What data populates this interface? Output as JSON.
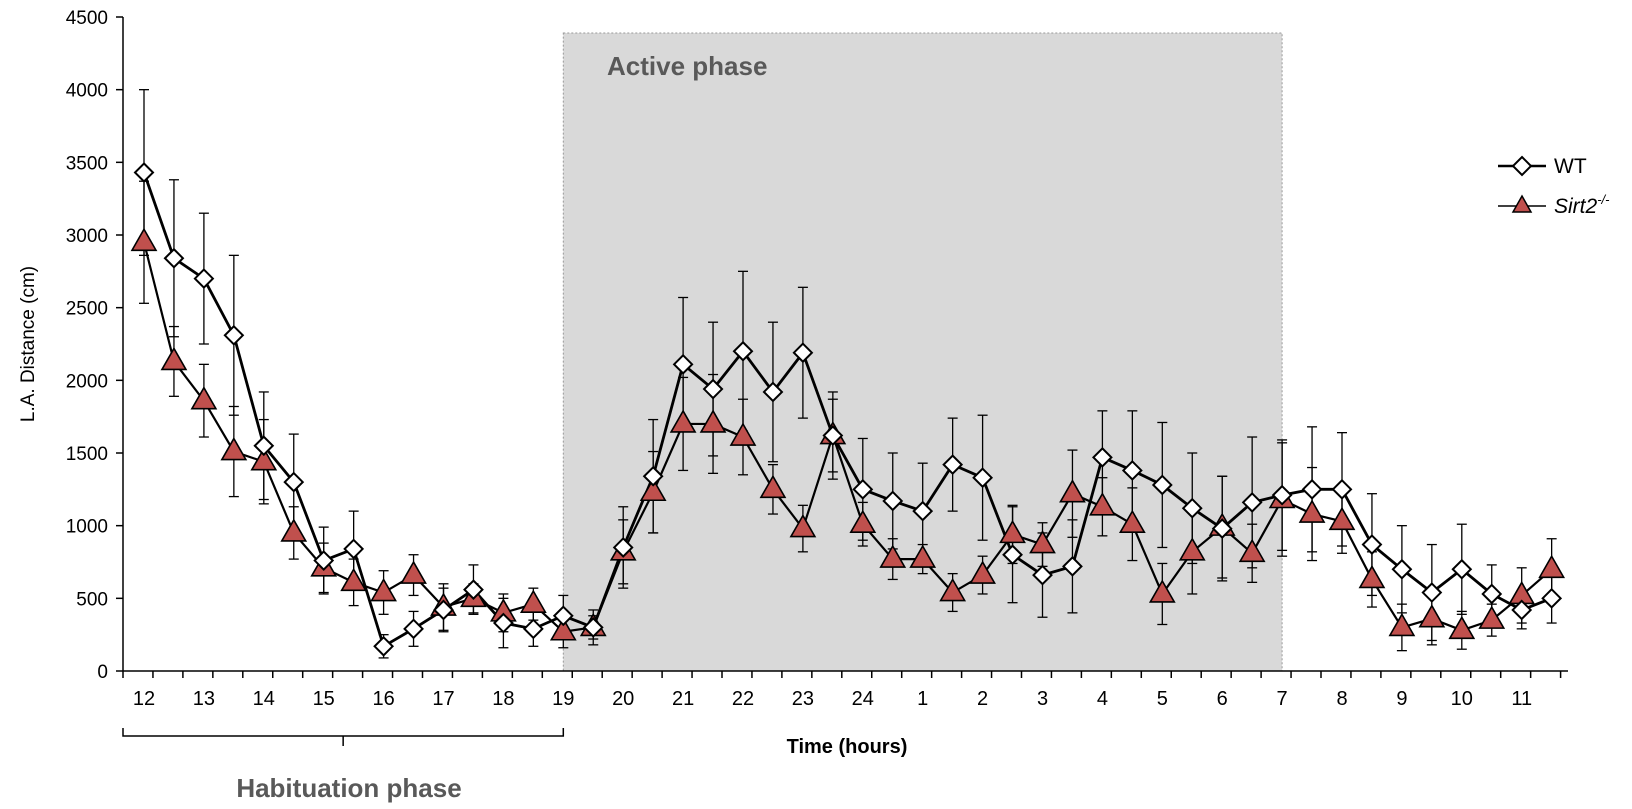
{
  "chart_data": {
    "type": "line",
    "title": "",
    "xlabel": "Time (hours)",
    "ylabel": "L.A. Distance (cm)",
    "ylim": [
      0,
      4500
    ],
    "yticks": [
      0,
      500,
      1000,
      1500,
      2000,
      2500,
      3000,
      3500,
      4000,
      4500
    ],
    "x_tick_labels": [
      "12",
      "13",
      "14",
      "15",
      "16",
      "17",
      "18",
      "19",
      "20",
      "21",
      "22",
      "23",
      "24",
      "1",
      "2",
      "3",
      "4",
      "5",
      "6",
      "7",
      "8",
      "9",
      "10",
      "11"
    ],
    "grid": false,
    "legend_position": "right",
    "annotations": {
      "active_phase": "Active phase",
      "habituation_phase": "Habituation phase"
    },
    "series": [
      {
        "name": "WT",
        "marker": "diamond",
        "color": "#000000",
        "fill": "#ffffff",
        "values": [
          3430,
          2840,
          2700,
          2310,
          1550,
          1300,
          760,
          840,
          170,
          290,
          420,
          560,
          330,
          290,
          380,
          300,
          850,
          1340,
          2110,
          1940,
          2200,
          1920,
          2190,
          1620,
          1250,
          1170,
          1100,
          1420,
          1330,
          800,
          660,
          720,
          1470,
          1380,
          1280,
          1120,
          980,
          1160,
          1210,
          1250,
          1250,
          870,
          700,
          540,
          700,
          530,
          420,
          500
        ],
        "errors": [
          570,
          540,
          450,
          550,
          370,
          330,
          230,
          260,
          80,
          120,
          150,
          170,
          170,
          120,
          140,
          120,
          280,
          390,
          460,
          460,
          550,
          480,
          450,
          300,
          350,
          330,
          330,
          320,
          430,
          330,
          290,
          320,
          320,
          410,
          430,
          380,
          360,
          450,
          380,
          430,
          390,
          350,
          300,
          330,
          310,
          200,
          130,
          170
        ]
      },
      {
        "name": "Sirt2-/-",
        "marker": "triangle",
        "color": "#000000",
        "fill": "#c0504d",
        "values": [
          2950,
          2130,
          1860,
          1510,
          1440,
          950,
          710,
          610,
          540,
          660,
          440,
          500,
          400,
          460,
          270,
          300,
          820,
          1230,
          1700,
          1700,
          1610,
          1250,
          980,
          1620,
          1010,
          770,
          770,
          540,
          660,
          940,
          870,
          1220,
          1130,
          1010,
          530,
          820,
          990,
          810,
          1180,
          1080,
          1030,
          630,
          300,
          360,
          280,
          350,
          520,
          700
        ],
        "errors": [
          420,
          240,
          250,
          310,
          290,
          180,
          170,
          160,
          150,
          140,
          160,
          100,
          130,
          110,
          110,
          80,
          220,
          280,
          320,
          340,
          260,
          170,
          160,
          250,
          150,
          140,
          100,
          130,
          130,
          200,
          150,
          300,
          200,
          250,
          210,
          290,
          350,
          200,
          390,
          320,
          220,
          190,
          160,
          180,
          130,
          110,
          190,
          210
        ]
      }
    ]
  },
  "legend": {
    "wt_label": "WT",
    "ko_label_base": "Sirt2",
    "ko_label_sup": "-/-"
  }
}
